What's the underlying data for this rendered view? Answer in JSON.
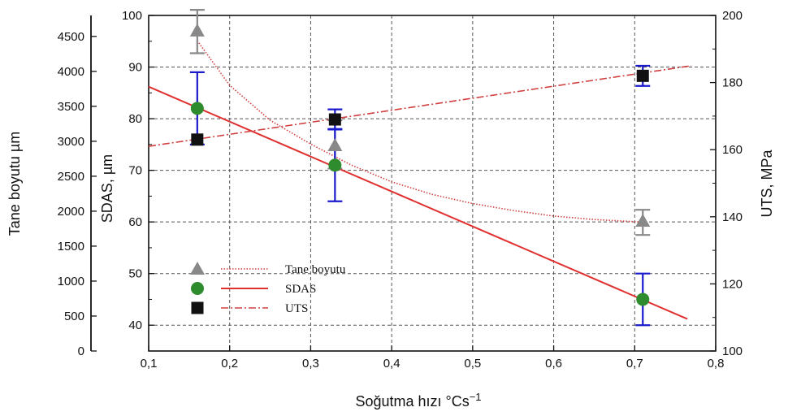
{
  "chart_data": {
    "type": "line",
    "x_axis": {
      "label": "Soğutma hızı °Cs",
      "label_sup": "−1",
      "range": [
        0.1,
        0.8
      ],
      "ticks": [
        0.1,
        0.2,
        0.3,
        0.4,
        0.5,
        0.6,
        0.7,
        0.8
      ],
      "tick_labels": [
        "0,1",
        "0,2",
        "0,3",
        "0,4",
        "0,5",
        "0,6",
        "0,7",
        "0,8"
      ]
    },
    "y_axis_outer_left": {
      "label": "Tane boyutu µm",
      "range": [
        0,
        4800
      ],
      "ticks": [
        0,
        500,
        1000,
        1500,
        2000,
        2500,
        3000,
        3500,
        4000,
        4500
      ],
      "tick_labels": [
        "0",
        "500",
        "1000",
        "1500",
        "2000",
        "2500",
        "3000",
        "3500",
        "4000",
        "4500"
      ]
    },
    "y_axis_left": {
      "label": "SDAS, µm",
      "range": [
        35,
        100
      ],
      "ticks": [
        40,
        50,
        60,
        70,
        80,
        90,
        100
      ],
      "tick_labels": [
        "40",
        "50",
        "60",
        "70",
        "80",
        "90",
        "100"
      ]
    },
    "y_axis_right": {
      "label": "UTS, MPa",
      "range": [
        100,
        200
      ],
      "ticks": [
        100,
        120,
        140,
        160,
        180,
        200
      ],
      "tick_labels": [
        "100",
        "120",
        "140",
        "160",
        "180",
        "200"
      ]
    },
    "grid": true,
    "legend": {
      "position": "bottom-left",
      "entries": [
        "Tane boyutu",
        "SDAS",
        "UTS"
      ]
    },
    "series": [
      {
        "name": "Tane boyutu",
        "axis": "outer-left",
        "color": "#888888",
        "marker": "triangle",
        "line_color": "#d04040",
        "line_style": "dotted",
        "x": [
          0.16,
          0.33,
          0.71
        ],
        "y": [
          4580,
          2940,
          1860
        ],
        "err_low": [
          4260,
          2610,
          1660
        ],
        "err_high": [
          4880,
          3300,
          2020
        ],
        "fit_x": [
          0.16,
          0.2,
          0.25,
          0.3,
          0.35,
          0.4,
          0.45,
          0.5,
          0.55,
          0.6,
          0.65,
          0.7,
          0.71
        ],
        "fit_y": [
          4440,
          3800,
          3300,
          2960,
          2660,
          2420,
          2240,
          2110,
          2010,
          1930,
          1880,
          1850,
          1840
        ]
      },
      {
        "name": "SDAS",
        "axis": "left",
        "color": "#2e8b2e",
        "marker": "circle",
        "line_color": "#e03030",
        "line_style": "solid",
        "x": [
          0.16,
          0.33,
          0.71
        ],
        "y": [
          82,
          71,
          45
        ],
        "err_low": [
          75,
          64,
          40
        ],
        "err_high": [
          89,
          78,
          50
        ],
        "fit_x": [
          0.1,
          0.765
        ],
        "fit_y": [
          86.2,
          41.2
        ]
      },
      {
        "name": "UTS",
        "axis": "right",
        "color": "#111111",
        "marker": "square",
        "line_color": "#d04040",
        "line_style": "dashdot",
        "x": [
          0.16,
          0.33,
          0.71
        ],
        "y": [
          163,
          169,
          182
        ],
        "err_low": [
          null,
          166,
          179
        ],
        "err_high": [
          null,
          172,
          185
        ],
        "fit_x": [
          0.1,
          0.77
        ],
        "fit_y": [
          161,
          185
        ]
      }
    ]
  }
}
